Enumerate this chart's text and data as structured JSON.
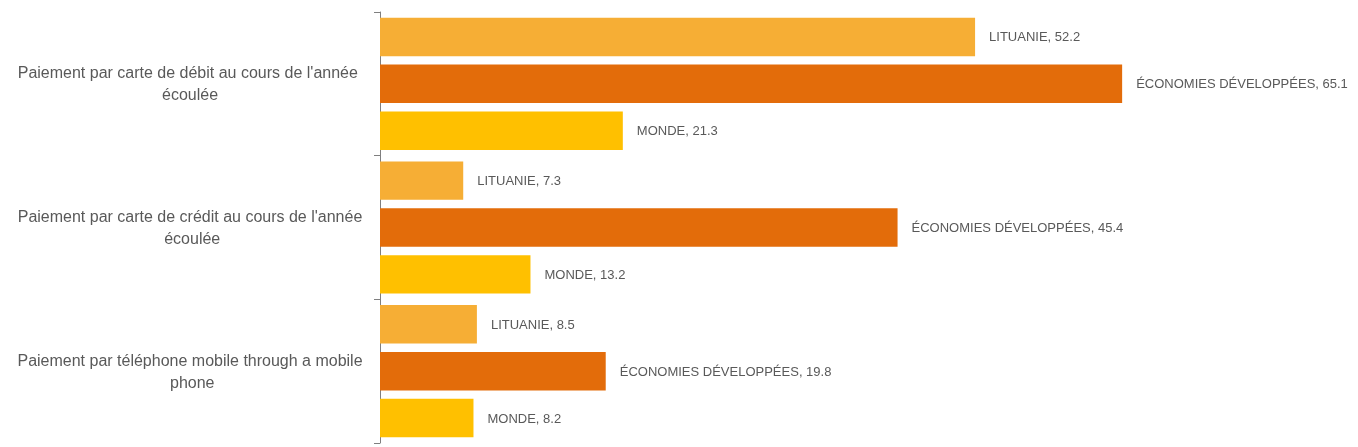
{
  "chart_data": {
    "type": "bar",
    "orientation": "horizontal",
    "categories": [
      "Paiement par carte de débit au cours de l'année écoulée",
      "Paiement par carte de crédit au cours de l'année écoulée",
      "Paiement par téléphone mobile through a mobile phone"
    ],
    "series": [
      {
        "color": "#f6ae35",
        "values": [
          52.2,
          7.3,
          8.5
        ],
        "value_labels": [
          "LITUANIE, 52.2",
          "LITUANIE, 7.3",
          "LITUANIE, 8.5"
        ]
      },
      {
        "color": "#e36c0a",
        "values": [
          65.1,
          45.4,
          19.8
        ],
        "value_labels": [
          "ÉCONOMIES DÉVELOPPÉES, 65.1",
          "ÉCONOMIES DÉVELOPPÉES, 45.4",
          "ÉCONOMIES DÉVELOPPÉES, 19.8"
        ]
      },
      {
        "color": "#ffc000",
        "values": [
          21.3,
          13.2,
          8.2
        ],
        "value_labels": [
          "MONDE, 21.3",
          "MONDE, 13.2",
          "MONDE, 8.2"
        ]
      }
    ]
  }
}
